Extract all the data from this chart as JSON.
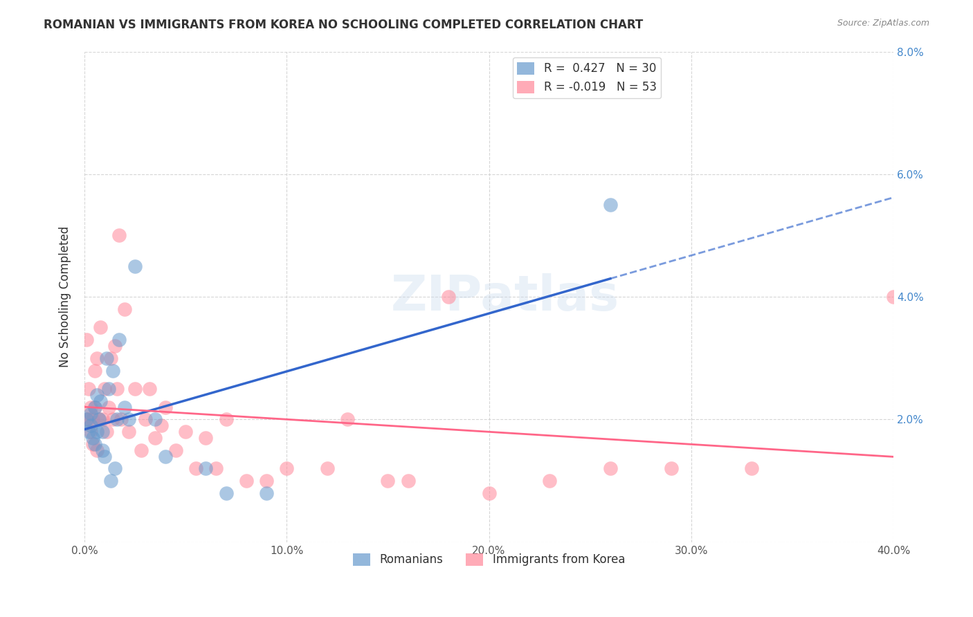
{
  "title": "ROMANIAN VS IMMIGRANTS FROM KOREA NO SCHOOLING COMPLETED CORRELATION CHART",
  "source": "Source: ZipAtlas.com",
  "ylabel_label": "No Schooling Completed",
  "xlim": [
    0.0,
    0.4
  ],
  "ylim": [
    0.0,
    0.08
  ],
  "xticks": [
    0.0,
    0.1,
    0.2,
    0.3,
    0.4
  ],
  "yticks": [
    0.0,
    0.02,
    0.04,
    0.06,
    0.08
  ],
  "xticklabels": [
    "0.0%",
    "10.0%",
    "20.0%",
    "30.0%",
    "40.0%"
  ],
  "yticklabels_right": [
    "",
    "2.0%",
    "4.0%",
    "6.0%",
    "8.0%"
  ],
  "background_color": "#ffffff",
  "grid_color": "#cccccc",
  "legend_R1": "R =  0.427",
  "legend_N1": "N = 30",
  "legend_R2": "R = -0.019",
  "legend_N2": "N = 53",
  "blue_color": "#6699cc",
  "pink_color": "#ff8899",
  "blue_line_color": "#3366cc",
  "pink_line_color": "#ff6688",
  "watermark": "ZIPatlas",
  "romanians_x": [
    0.001,
    0.002,
    0.003,
    0.003,
    0.004,
    0.005,
    0.005,
    0.006,
    0.006,
    0.007,
    0.008,
    0.009,
    0.009,
    0.01,
    0.011,
    0.012,
    0.013,
    0.014,
    0.015,
    0.016,
    0.017,
    0.02,
    0.022,
    0.025,
    0.035,
    0.04,
    0.06,
    0.07,
    0.09,
    0.26
  ],
  "romanians_y": [
    0.02,
    0.018,
    0.019,
    0.021,
    0.017,
    0.022,
    0.016,
    0.024,
    0.018,
    0.02,
    0.023,
    0.015,
    0.018,
    0.014,
    0.03,
    0.025,
    0.01,
    0.028,
    0.012,
    0.02,
    0.033,
    0.022,
    0.02,
    0.045,
    0.02,
    0.014,
    0.012,
    0.008,
    0.008,
    0.055
  ],
  "korea_x": [
    0.001,
    0.001,
    0.002,
    0.002,
    0.003,
    0.003,
    0.004,
    0.004,
    0.005,
    0.005,
    0.006,
    0.006,
    0.007,
    0.008,
    0.009,
    0.01,
    0.011,
    0.012,
    0.013,
    0.014,
    0.015,
    0.016,
    0.017,
    0.018,
    0.02,
    0.022,
    0.025,
    0.028,
    0.03,
    0.032,
    0.035,
    0.038,
    0.04,
    0.045,
    0.05,
    0.055,
    0.06,
    0.065,
    0.07,
    0.08,
    0.09,
    0.1,
    0.12,
    0.13,
    0.15,
    0.16,
    0.18,
    0.2,
    0.23,
    0.26,
    0.29,
    0.33,
    0.4
  ],
  "korea_y": [
    0.02,
    0.033,
    0.02,
    0.025,
    0.018,
    0.022,
    0.02,
    0.016,
    0.028,
    0.022,
    0.015,
    0.03,
    0.02,
    0.035,
    0.02,
    0.025,
    0.018,
    0.022,
    0.03,
    0.02,
    0.032,
    0.025,
    0.05,
    0.02,
    0.038,
    0.018,
    0.025,
    0.015,
    0.02,
    0.025,
    0.017,
    0.019,
    0.022,
    0.015,
    0.018,
    0.012,
    0.017,
    0.012,
    0.02,
    0.01,
    0.01,
    0.012,
    0.012,
    0.02,
    0.01,
    0.01,
    0.04,
    0.008,
    0.01,
    0.012,
    0.012,
    0.012,
    0.04
  ]
}
